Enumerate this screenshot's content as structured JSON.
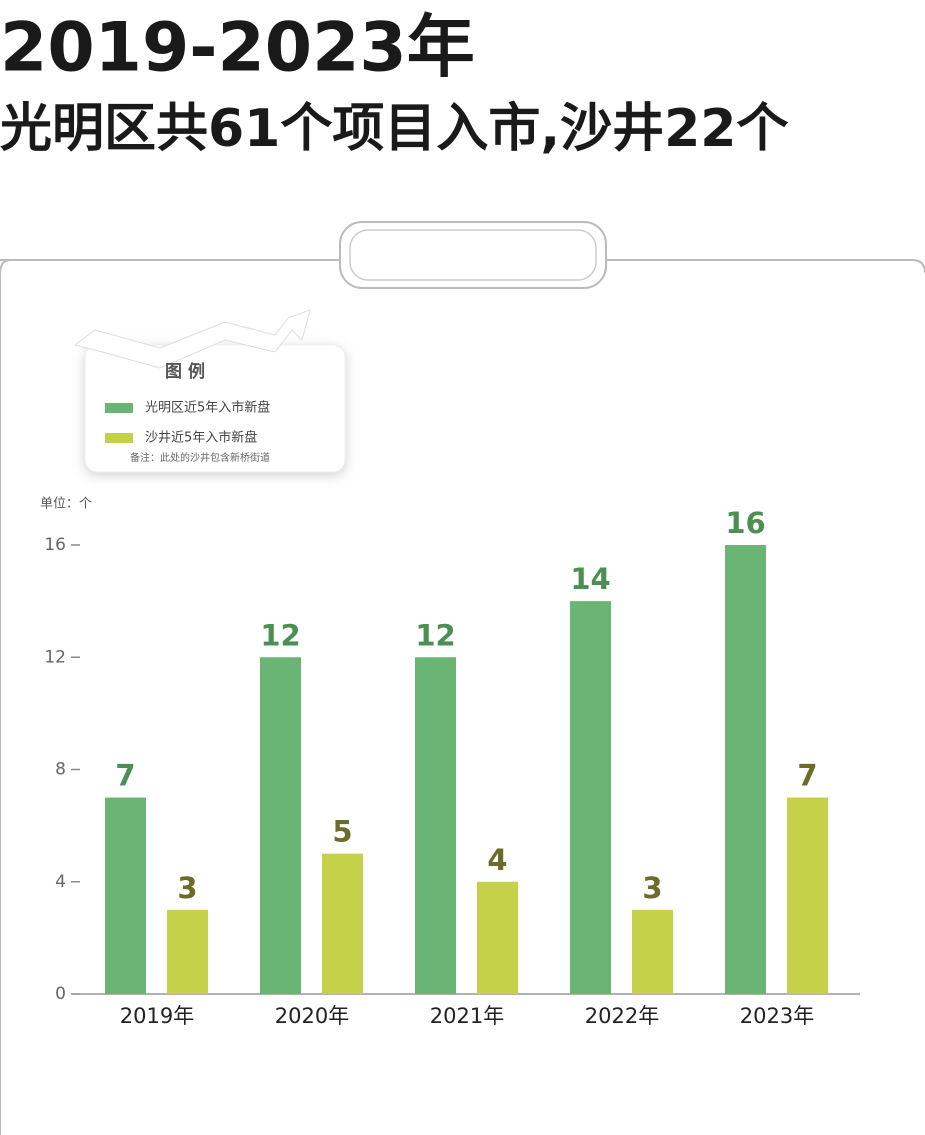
{
  "title": "2019-2023年",
  "subtitle": "光明区共61个项目入市,沙井22个",
  "legend_title": "图 例",
  "note": "备注：此处的沙井包含新桥街道",
  "chart_data": {
    "type": "bar",
    "unit_label": "单位：个",
    "categories": [
      "2019年",
      "2020年",
      "2021年",
      "2022年",
      "2023年"
    ],
    "series": [
      {
        "name": "光明区近5年入市新盘",
        "color": "#6ab574",
        "label_color": "#4c8f52",
        "values": [
          7,
          12,
          12,
          14,
          16
        ]
      },
      {
        "name": "沙井近5年入市新盘",
        "color": "#c6d14a",
        "label_color": "#6b6b2a",
        "values": [
          3,
          5,
          4,
          3,
          7
        ]
      }
    ],
    "ylim": [
      0,
      16
    ],
    "yticks": [
      0,
      4,
      8,
      12,
      16
    ],
    "grid": false
  }
}
